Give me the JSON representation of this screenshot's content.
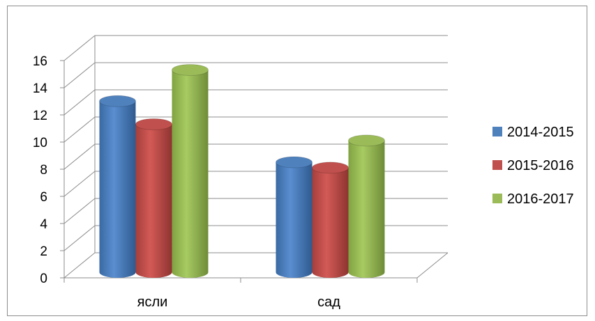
{
  "chart_data": {
    "type": "bar",
    "categories": [
      "ясли",
      "сад"
    ],
    "series": [
      {
        "name": "2014-2015",
        "values": [
          12.6,
          8.1
        ],
        "color": "#4f81bd"
      },
      {
        "name": "2015-2016",
        "values": [
          10.9,
          7.7
        ],
        "color": "#c0504d"
      },
      {
        "name": "2016-2017",
        "values": [
          14.9,
          9.7
        ],
        "color": "#9bbb59"
      }
    ],
    "ylim": [
      0,
      16
    ],
    "yticks": [
      "0",
      "2",
      "4",
      "6",
      "8",
      "10",
      "12",
      "14",
      "16"
    ],
    "grid": true,
    "legend_position": "right",
    "style": "3d-cylinder"
  }
}
